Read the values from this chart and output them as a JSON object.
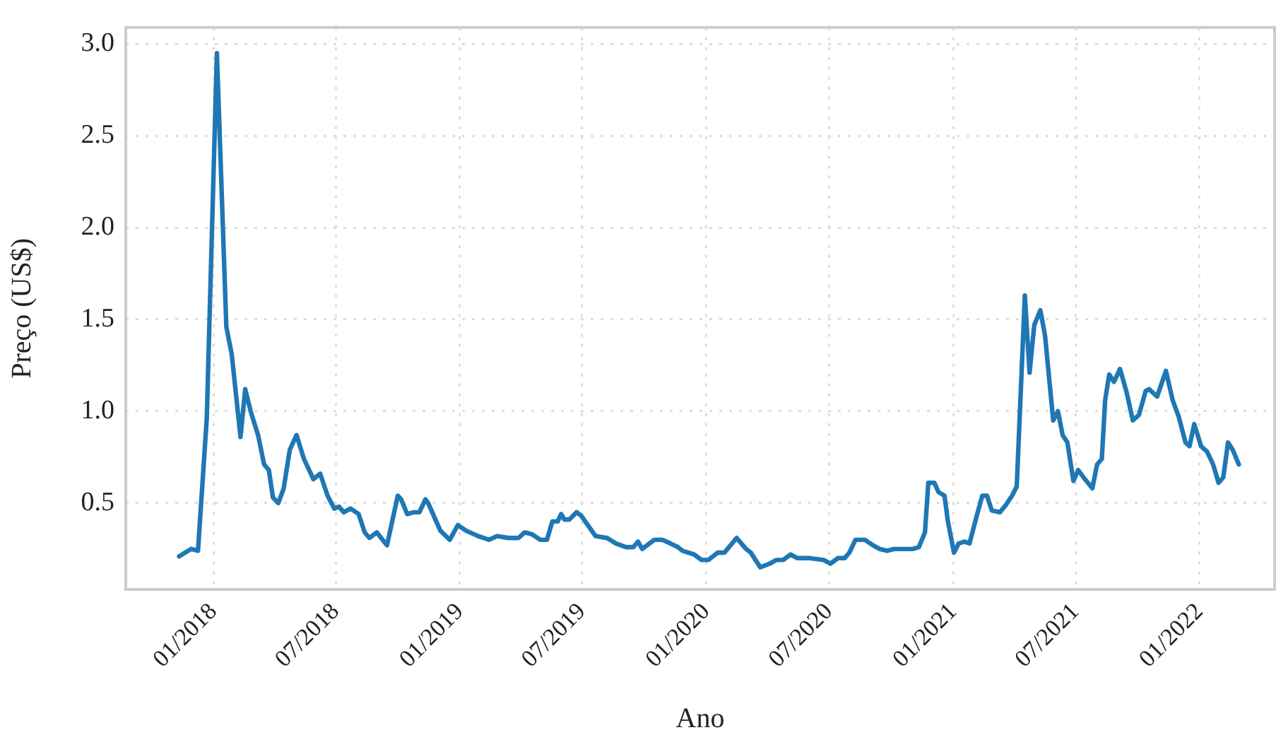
{
  "chart_data": {
    "type": "line",
    "xlabel": "Ano",
    "ylabel": "Preço (US$)",
    "x": [
      "2017-11-11",
      "2017-11-29",
      "2017-12-09",
      "2017-12-22",
      "2018-01-06",
      "2018-01-20",
      "2018-01-28",
      "2018-02-10",
      "2018-02-17",
      "2018-02-25",
      "2018-03-08",
      "2018-03-17",
      "2018-03-24",
      "2018-03-30",
      "2018-04-07",
      "2018-04-15",
      "2018-04-24",
      "2018-05-04",
      "2018-05-15",
      "2018-05-29",
      "2018-06-08",
      "2018-06-19",
      "2018-06-29",
      "2018-07-06",
      "2018-07-13",
      "2018-07-23",
      "2018-08-04",
      "2018-08-13",
      "2018-08-20",
      "2018-08-31",
      "2018-09-15",
      "2018-10-01",
      "2018-10-06",
      "2018-10-15",
      "2018-10-25",
      "2018-11-02",
      "2018-11-11",
      "2018-11-15",
      "2018-12-03",
      "2018-12-17",
      "2018-12-29",
      "2019-01-10",
      "2019-01-28",
      "2019-02-13",
      "2019-02-25",
      "2019-03-14",
      "2019-03-29",
      "2019-04-07",
      "2019-04-18",
      "2019-04-30",
      "2019-05-10",
      "2019-05-18",
      "2019-05-26",
      "2019-05-31",
      "2019-06-05",
      "2019-06-12",
      "2019-06-23",
      "2019-06-30",
      "2019-07-21",
      "2019-08-07",
      "2019-08-20",
      "2019-09-04",
      "2019-09-15",
      "2019-09-22",
      "2019-09-28",
      "2019-10-16",
      "2019-10-28",
      "2019-11-09",
      "2019-11-20",
      "2019-11-27",
      "2019-12-14",
      "2019-12-25",
      "2020-01-04",
      "2020-01-18",
      "2020-01-28",
      "2020-02-15",
      "2020-02-29",
      "2020-03-07",
      "2020-03-21",
      "2020-04-04",
      "2020-04-14",
      "2020-04-24",
      "2020-05-05",
      "2020-05-15",
      "2020-06-02",
      "2020-06-23",
      "2020-07-03",
      "2020-07-14",
      "2020-07-24",
      "2020-07-31",
      "2020-08-09",
      "2020-08-23",
      "2020-09-04",
      "2020-09-14",
      "2020-09-25",
      "2020-10-05",
      "2020-10-16",
      "2020-10-26",
      "2020-11-02",
      "2020-11-11",
      "2020-11-20",
      "2020-11-25",
      "2020-12-04",
      "2020-12-10",
      "2020-12-19",
      "2020-12-24",
      "2021-01-02",
      "2021-01-09",
      "2021-01-18",
      "2021-01-25",
      "2021-02-04",
      "2021-02-13",
      "2021-02-20",
      "2021-02-27",
      "2021-03-11",
      "2021-03-20",
      "2021-03-29",
      "2021-04-05",
      "2021-04-17",
      "2021-04-24",
      "2021-05-01",
      "2021-05-10",
      "2021-05-17",
      "2021-05-29",
      "2021-06-05",
      "2021-06-12",
      "2021-06-19",
      "2021-06-28",
      "2021-07-05",
      "2021-07-15",
      "2021-07-26",
      "2021-08-02",
      "2021-08-09",
      "2021-08-14",
      "2021-08-20",
      "2021-08-27",
      "2021-09-05",
      "2021-09-15",
      "2021-09-24",
      "2021-10-03",
      "2021-10-13",
      "2021-10-18",
      "2021-10-30",
      "2021-11-12",
      "2021-11-22",
      "2021-12-01",
      "2021-12-11",
      "2021-12-17",
      "2021-12-24",
      "2022-01-03",
      "2022-01-12",
      "2022-01-21",
      "2022-01-29",
      "2022-02-05",
      "2022-02-12",
      "2022-02-19",
      "2022-02-28"
    ],
    "series": [
      {
        "color": "#1f77b4",
        "values": [
          0.21,
          0.25,
          0.24,
          0.96,
          2.95,
          1.46,
          1.31,
          0.86,
          1.12,
          1.0,
          0.87,
          0.71,
          0.68,
          0.53,
          0.5,
          0.58,
          0.79,
          0.87,
          0.74,
          0.63,
          0.66,
          0.54,
          0.47,
          0.48,
          0.45,
          0.47,
          0.44,
          0.34,
          0.31,
          0.34,
          0.27,
          0.54,
          0.52,
          0.44,
          0.45,
          0.45,
          0.52,
          0.5,
          0.35,
          0.3,
          0.38,
          0.35,
          0.32,
          0.3,
          0.32,
          0.31,
          0.31,
          0.34,
          0.33,
          0.3,
          0.3,
          0.4,
          0.4,
          0.44,
          0.41,
          0.41,
          0.45,
          0.43,
          0.32,
          0.31,
          0.28,
          0.26,
          0.26,
          0.29,
          0.25,
          0.3,
          0.3,
          0.28,
          0.26,
          0.24,
          0.22,
          0.19,
          0.19,
          0.23,
          0.23,
          0.31,
          0.25,
          0.23,
          0.15,
          0.17,
          0.19,
          0.19,
          0.22,
          0.2,
          0.2,
          0.19,
          0.17,
          0.2,
          0.2,
          0.23,
          0.3,
          0.3,
          0.27,
          0.25,
          0.24,
          0.25,
          0.25,
          0.25,
          0.25,
          0.26,
          0.34,
          0.61,
          0.61,
          0.56,
          0.54,
          0.4,
          0.23,
          0.28,
          0.29,
          0.28,
          0.42,
          0.54,
          0.54,
          0.46,
          0.45,
          0.49,
          0.54,
          0.59,
          1.63,
          1.21,
          1.47,
          1.55,
          1.41,
          0.95,
          1.0,
          0.87,
          0.83,
          0.62,
          0.68,
          0.63,
          0.58,
          0.71,
          0.74,
          1.06,
          1.2,
          1.16,
          1.23,
          1.1,
          0.95,
          0.98,
          1.11,
          1.12,
          1.08,
          1.22,
          1.06,
          0.97,
          0.83,
          0.81,
          0.93,
          0.81,
          0.78,
          0.71,
          0.61,
          0.64,
          0.83,
          0.79,
          0.71
        ]
      }
    ],
    "xlim": [
      "2017-08-24",
      "2022-04-22"
    ],
    "xticks": [
      {
        "value": "2018-01-01",
        "label": "01/2018"
      },
      {
        "value": "2018-07-01",
        "label": "07/2018"
      },
      {
        "value": "2019-01-01",
        "label": "01/2019"
      },
      {
        "value": "2019-07-01",
        "label": "07/2019"
      },
      {
        "value": "2020-01-01",
        "label": "01/2020"
      },
      {
        "value": "2020-07-01",
        "label": "07/2020"
      },
      {
        "value": "2021-01-01",
        "label": "01/2021"
      },
      {
        "value": "2021-07-01",
        "label": "07/2021"
      },
      {
        "value": "2022-01-01",
        "label": "01/2022"
      }
    ],
    "ylim": [
      0.03,
      3.09
    ],
    "yticks": [
      0.5,
      {
        "value": 1,
        "label": "1.0"
      },
      1.5,
      {
        "value": 2,
        "label": "2.0"
      },
      2.5,
      {
        "value": 3,
        "label": "3.0"
      }
    ],
    "grid": true,
    "line_style": "solid",
    "marker": "none",
    "legend": false
  }
}
